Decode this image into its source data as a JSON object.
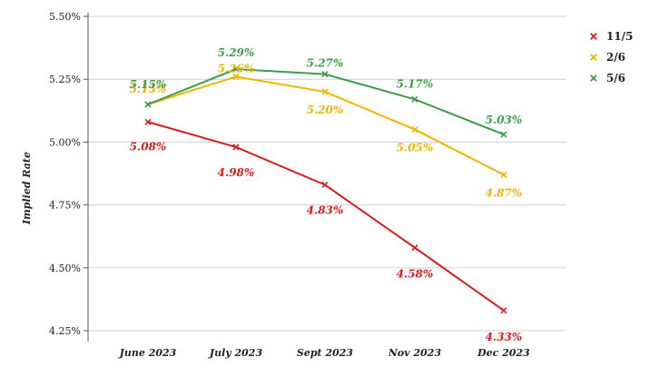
{
  "chart_data": {
    "type": "line",
    "categories": [
      "June 2023",
      "July 2023",
      "Sept 2023",
      "Nov 2023",
      "Dec 2023"
    ],
    "ylabel": "Implied Rate",
    "ylim": [
      4.25,
      5.5
    ],
    "yticks": [
      "4.25%",
      "4.50%",
      "4.75%",
      "5.00%",
      "5.25%",
      "5.50%"
    ],
    "grid": true,
    "legend_position": "top-right",
    "series": [
      {
        "name": "11/5",
        "color": "#dd1b1b",
        "values": [
          5.08,
          4.98,
          4.83,
          4.58,
          4.33
        ],
        "labels": [
          "5.08%",
          "4.98%",
          "4.83%",
          "4.58%",
          "4.33%"
        ]
      },
      {
        "name": "2/6",
        "color": "#f0b400",
        "values": [
          5.15,
          5.26,
          5.2,
          5.05,
          4.87
        ],
        "labels": [
          "5.15%",
          "5.26%",
          "5.20%",
          "5.05%",
          "4.87%"
        ]
      },
      {
        "name": "5/6",
        "color": "#3a9e48",
        "values": [
          5.15,
          5.29,
          5.27,
          5.17,
          5.03
        ],
        "labels": [
          "5.15%",
          "5.29%",
          "5.27%",
          "5.17%",
          "5.03%"
        ]
      }
    ]
  }
}
